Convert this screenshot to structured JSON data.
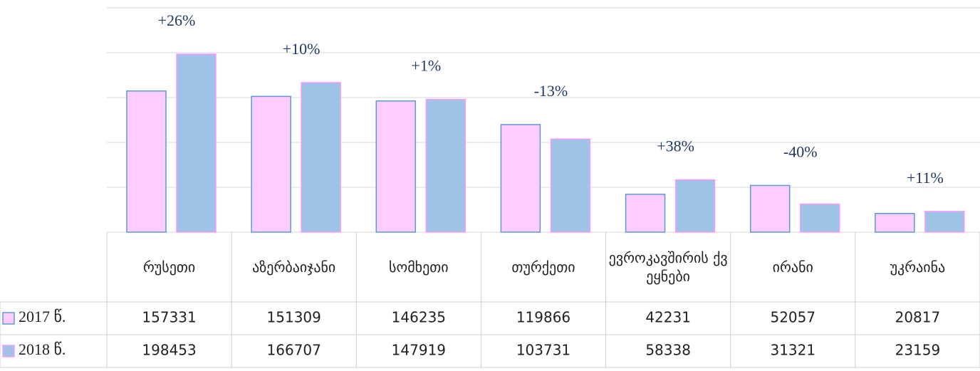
{
  "chart_data": {
    "type": "bar",
    "categories": [
      "რუსეთი",
      "აზერბაიჯანი",
      "სომხეთი",
      "თურქეთი",
      "ევროკავშირის ქვეყნები",
      "ირანი",
      "უკრაინა"
    ],
    "series": [
      {
        "name": "2017 წ.",
        "color": "#ffccff",
        "values": [
          157331,
          151309,
          146235,
          119866,
          42231,
          52057,
          20817
        ]
      },
      {
        "name": "2018 წ.",
        "color": "#9dc3e6",
        "values": [
          198453,
          166707,
          147919,
          103731,
          58338,
          31321,
          23159
        ]
      }
    ],
    "annotations": [
      "+26%",
      "+10%",
      "+1%",
      "-13%",
      "+38%",
      "-40%",
      "+11%"
    ],
    "ylim": [
      0,
      250000
    ],
    "yticks": [
      0,
      50000,
      100000,
      150000,
      200000,
      250000
    ],
    "grid": true
  }
}
